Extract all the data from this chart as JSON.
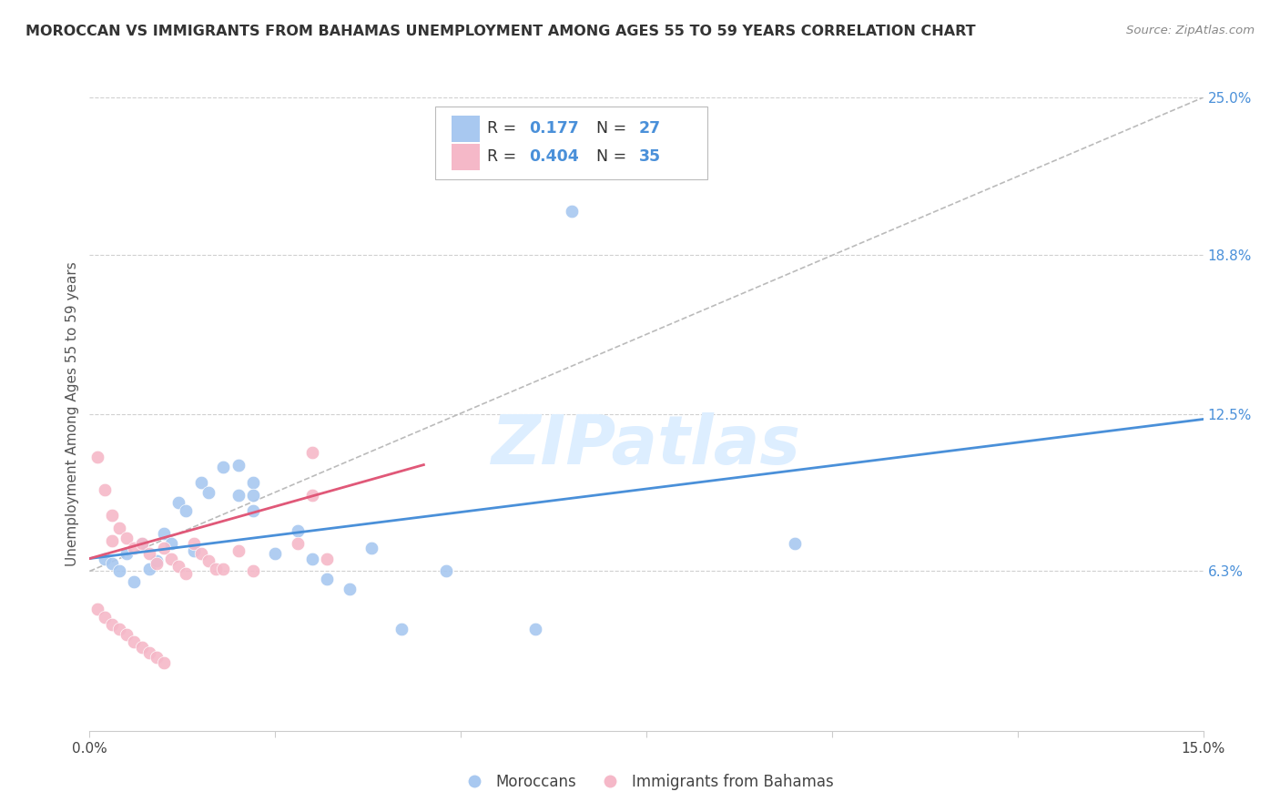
{
  "title": "MOROCCAN VS IMMIGRANTS FROM BAHAMAS UNEMPLOYMENT AMONG AGES 55 TO 59 YEARS CORRELATION CHART",
  "source": "Source: ZipAtlas.com",
  "ylabel": "Unemployment Among Ages 55 to 59 years",
  "xlim": [
    0.0,
    0.15
  ],
  "ylim": [
    0.0,
    0.25
  ],
  "ytick_labels_right": [
    "6.3%",
    "12.5%",
    "18.8%",
    "25.0%"
  ],
  "ytick_values_right": [
    0.063,
    0.125,
    0.188,
    0.25
  ],
  "blue_color": "#a8c8f0",
  "pink_color": "#f5b8c8",
  "blue_line_color": "#4a90d9",
  "pink_line_color": "#e05878",
  "grid_color": "#d0d0d0",
  "watermark_color": "#ddeeff",
  "moroccan_x": [
    0.002,
    0.003,
    0.004,
    0.005,
    0.006,
    0.007,
    0.008,
    0.009,
    0.01,
    0.011,
    0.012,
    0.013,
    0.014,
    0.015,
    0.016,
    0.018,
    0.02,
    0.022,
    0.022,
    0.025,
    0.028,
    0.03,
    0.032,
    0.035,
    0.042,
    0.048,
    0.06,
    0.095,
    0.02,
    0.022,
    0.038,
    0.065
  ],
  "moroccan_y": [
    0.068,
    0.066,
    0.063,
    0.07,
    0.059,
    0.074,
    0.064,
    0.067,
    0.078,
    0.074,
    0.09,
    0.087,
    0.071,
    0.098,
    0.094,
    0.104,
    0.105,
    0.098,
    0.093,
    0.07,
    0.079,
    0.068,
    0.06,
    0.056,
    0.04,
    0.063,
    0.04,
    0.074,
    0.093,
    0.087,
    0.072,
    0.205
  ],
  "bahamas_x": [
    0.001,
    0.002,
    0.003,
    0.003,
    0.004,
    0.005,
    0.006,
    0.007,
    0.008,
    0.009,
    0.01,
    0.011,
    0.012,
    0.013,
    0.014,
    0.015,
    0.016,
    0.017,
    0.018,
    0.02,
    0.022,
    0.028,
    0.03,
    0.032,
    0.001,
    0.002,
    0.003,
    0.004,
    0.005,
    0.006,
    0.007,
    0.008,
    0.009,
    0.01,
    0.03
  ],
  "bahamas_y": [
    0.108,
    0.095,
    0.085,
    0.075,
    0.08,
    0.076,
    0.072,
    0.074,
    0.07,
    0.066,
    0.072,
    0.068,
    0.065,
    0.062,
    0.074,
    0.07,
    0.067,
    0.064,
    0.064,
    0.071,
    0.063,
    0.074,
    0.093,
    0.068,
    0.048,
    0.045,
    0.042,
    0.04,
    0.038,
    0.035,
    0.033,
    0.031,
    0.029,
    0.027,
    0.11
  ],
  "blue_trend_x": [
    0.0,
    0.15
  ],
  "blue_trend_y": [
    0.068,
    0.123
  ],
  "pink_trend_x": [
    0.0,
    0.045
  ],
  "pink_trend_y": [
    0.068,
    0.105
  ],
  "dash_trend_x": [
    0.0,
    0.15
  ],
  "dash_trend_y": [
    0.063,
    0.25
  ]
}
